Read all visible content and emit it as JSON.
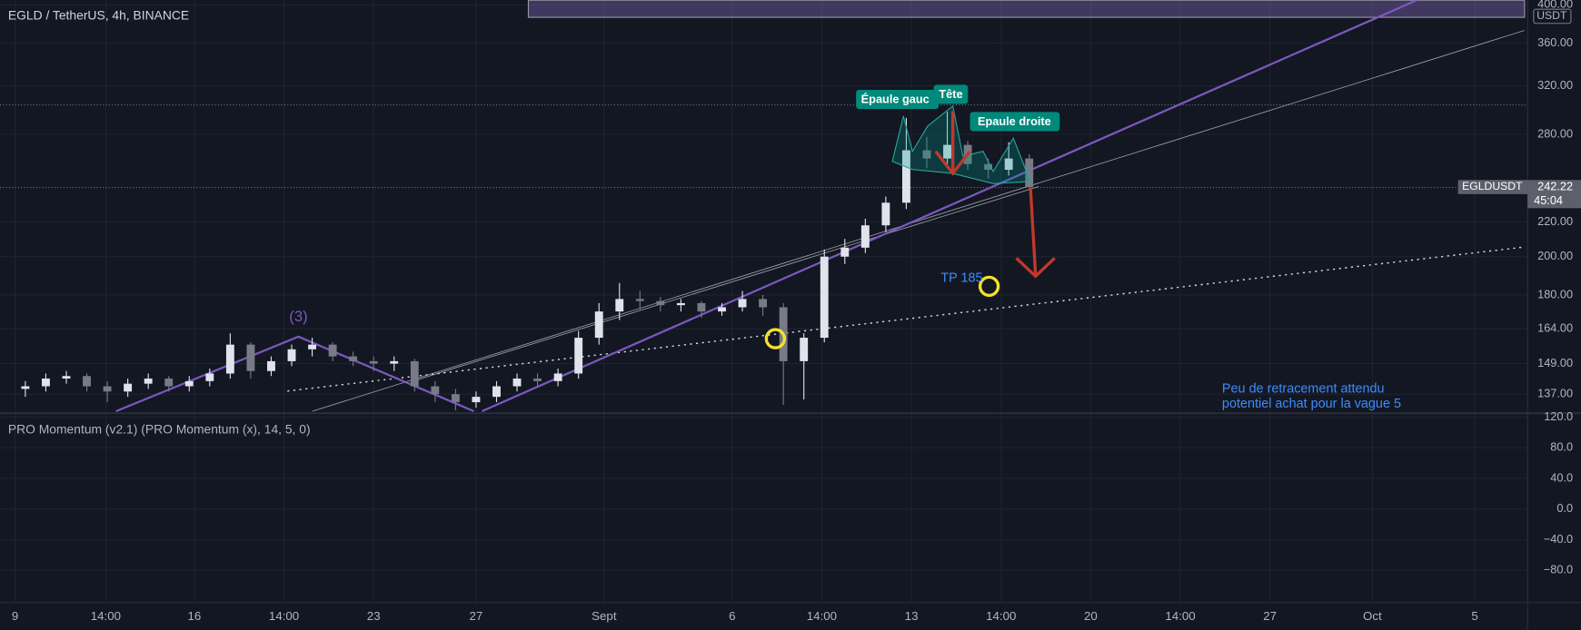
{
  "chart_data": {
    "type": "candlestick",
    "title": "EGLD / TetherUS, 4h, BINANCE",
    "indicator": "PRO Momentum (v2.1) (PRO Momentum (x), 14, 5, 0)",
    "currency": "USDT",
    "symbol": "EGLDUSDT",
    "last_price": 242.22,
    "countdown": "45:04",
    "annotations": [
      "Épaule gauc",
      "Tête",
      "Epaule droite",
      "TP 185",
      "(3)",
      "Peu de retracement attendu",
      "potentiel achat pour la vague 5"
    ],
    "up_color": "#e0e3eb",
    "down_color": "#787b86",
    "log_scale": true,
    "grid": true,
    "xlim": [
      -0.59,
      59.06
    ],
    "xticks": [
      {
        "value": 0,
        "label": "9"
      },
      {
        "value": 3.54,
        "label": "14:00"
      },
      {
        "value": 7,
        "label": "16"
      },
      {
        "value": 10.5,
        "label": "14:00"
      },
      {
        "value": 14,
        "label": "23"
      },
      {
        "value": 18,
        "label": "27"
      },
      {
        "value": 23,
        "label": "Sept"
      },
      {
        "value": 28,
        "label": "6"
      },
      {
        "value": 31.5,
        "label": "14:00"
      },
      {
        "value": 35,
        "label": "13"
      },
      {
        "value": 38.5,
        "label": "14:00"
      },
      {
        "value": 42,
        "label": "20"
      },
      {
        "value": 45.5,
        "label": "14:00"
      },
      {
        "value": 49,
        "label": "27"
      },
      {
        "value": 53,
        "label": "Oct"
      },
      {
        "value": 57,
        "label": "5"
      }
    ],
    "ylim": [
      130,
      405
    ],
    "yticks": [
      {
        "value": 400,
        "label": "400.00"
      },
      {
        "value": 360,
        "label": "360.00"
      },
      {
        "value": 320,
        "label": "320.00"
      },
      {
        "value": 280,
        "label": "280.00"
      },
      {
        "value": 220,
        "label": "220.00"
      },
      {
        "value": 200,
        "label": "200.00"
      },
      {
        "value": 180,
        "label": "180.00"
      },
      {
        "value": 164,
        "label": "164.00"
      },
      {
        "value": 149,
        "label": "149.00"
      },
      {
        "value": 137,
        "label": "137.00"
      }
    ],
    "y2lim": [
      -122,
      125
    ],
    "y2ticks": [
      {
        "value": 120,
        "label": "120.0"
      },
      {
        "value": 80,
        "label": "80.0"
      },
      {
        "value": 40,
        "label": "40.0"
      },
      {
        "value": 0,
        "label": "0.0"
      },
      {
        "value": -40,
        "label": "−40.0"
      },
      {
        "value": -80,
        "label": "−80.0"
      }
    ],
    "candles": {
      "x": [
        0.4,
        1.2,
        2,
        2.8,
        3.6,
        4.4,
        5.2,
        6,
        6.8,
        7.6,
        8.4,
        9.2,
        10,
        10.8,
        11.6,
        12.4,
        13.2,
        14,
        14.8,
        15.6,
        16.4,
        17.2,
        18,
        18.8,
        19.6,
        20.4,
        21.2,
        22,
        22.8,
        23.6,
        24.4,
        25.2,
        26,
        26.8,
        27.6,
        28.4,
        29.2,
        30,
        30.8,
        31.6,
        32.4,
        33.2,
        34,
        34.8,
        35.6,
        36.4,
        37.2,
        38,
        38.8,
        39.6
      ],
      "open": [
        139,
        140,
        143,
        144,
        140,
        138,
        141,
        143,
        140,
        142,
        145,
        157,
        146,
        150,
        155,
        157,
        152,
        150,
        149,
        150,
        140,
        137,
        134,
        136,
        140,
        143,
        142,
        145,
        160,
        172,
        178,
        177,
        175,
        176,
        172,
        174,
        178,
        174,
        150,
        160,
        200,
        205,
        218,
        232,
        268,
        262,
        272,
        258,
        254,
        262
      ],
      "high": [
        142,
        145,
        146,
        145,
        142,
        143,
        145,
        144,
        144,
        147,
        162,
        158,
        152,
        157,
        160,
        158,
        154,
        152,
        152,
        151,
        142,
        139,
        138,
        142,
        145,
        145,
        147,
        163,
        176,
        186,
        182,
        179,
        178,
        177,
        176,
        182,
        180,
        176,
        162,
        204,
        210,
        222,
        236,
        293,
        278,
        298,
        275,
        262,
        274,
        265
      ],
      "low": [
        136,
        138,
        141,
        138,
        134,
        136,
        139,
        138,
        138,
        140,
        143,
        143,
        144,
        148,
        152,
        150,
        148,
        146,
        146,
        138,
        134,
        131,
        132,
        134,
        138,
        140,
        140,
        143,
        157,
        168,
        173,
        172,
        172,
        169,
        170,
        172,
        170,
        133,
        135,
        158,
        196,
        202,
        214,
        228,
        255,
        258,
        254,
        248,
        250,
        240
      ],
      "close": [
        140,
        143,
        144,
        140,
        138,
        141,
        143,
        140,
        142,
        145,
        157,
        146,
        150,
        155,
        157,
        152,
        150,
        149,
        150,
        140,
        137,
        134,
        136,
        140,
        143,
        142,
        145,
        160,
        172,
        178,
        177,
        175,
        176,
        172,
        174,
        178,
        174,
        150,
        160,
        200,
        205,
        218,
        232,
        268,
        262,
        272,
        258,
        254,
        262,
        242.22
      ]
    }
  }
}
